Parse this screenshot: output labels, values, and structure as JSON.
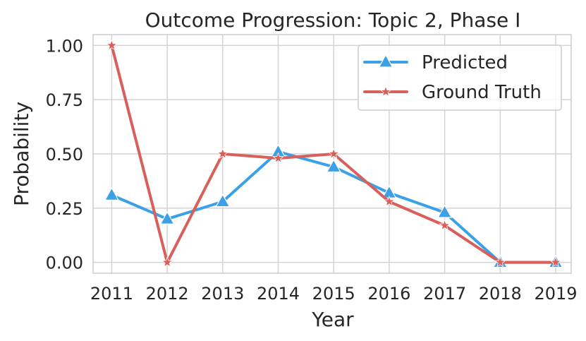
{
  "chart_data": {
    "type": "line",
    "title": "Outcome Progression: Topic 2, Phase I",
    "xlabel": "Year",
    "ylabel": "Probability",
    "categories": [
      "2011",
      "2012",
      "2013",
      "2014",
      "2015",
      "2016",
      "2017",
      "2018",
      "2019"
    ],
    "ylim": [
      -0.05,
      1.05
    ],
    "yticks": [
      "0.00",
      "0.25",
      "0.50",
      "0.75",
      "1.00"
    ],
    "grid": true,
    "legend_position": "top-right",
    "series": [
      {
        "name": "Predicted",
        "marker": "triangle",
        "color": "#3ca0e6",
        "values": [
          0.31,
          0.2,
          0.28,
          0.51,
          0.44,
          0.32,
          0.23,
          0.0,
          0.0
        ]
      },
      {
        "name": "Ground Truth",
        "marker": "star",
        "color": "#d9605a",
        "values": [
          1.0,
          0.0,
          0.5,
          0.48,
          0.5,
          0.28,
          0.17,
          0.0,
          0.0
        ]
      }
    ]
  }
}
